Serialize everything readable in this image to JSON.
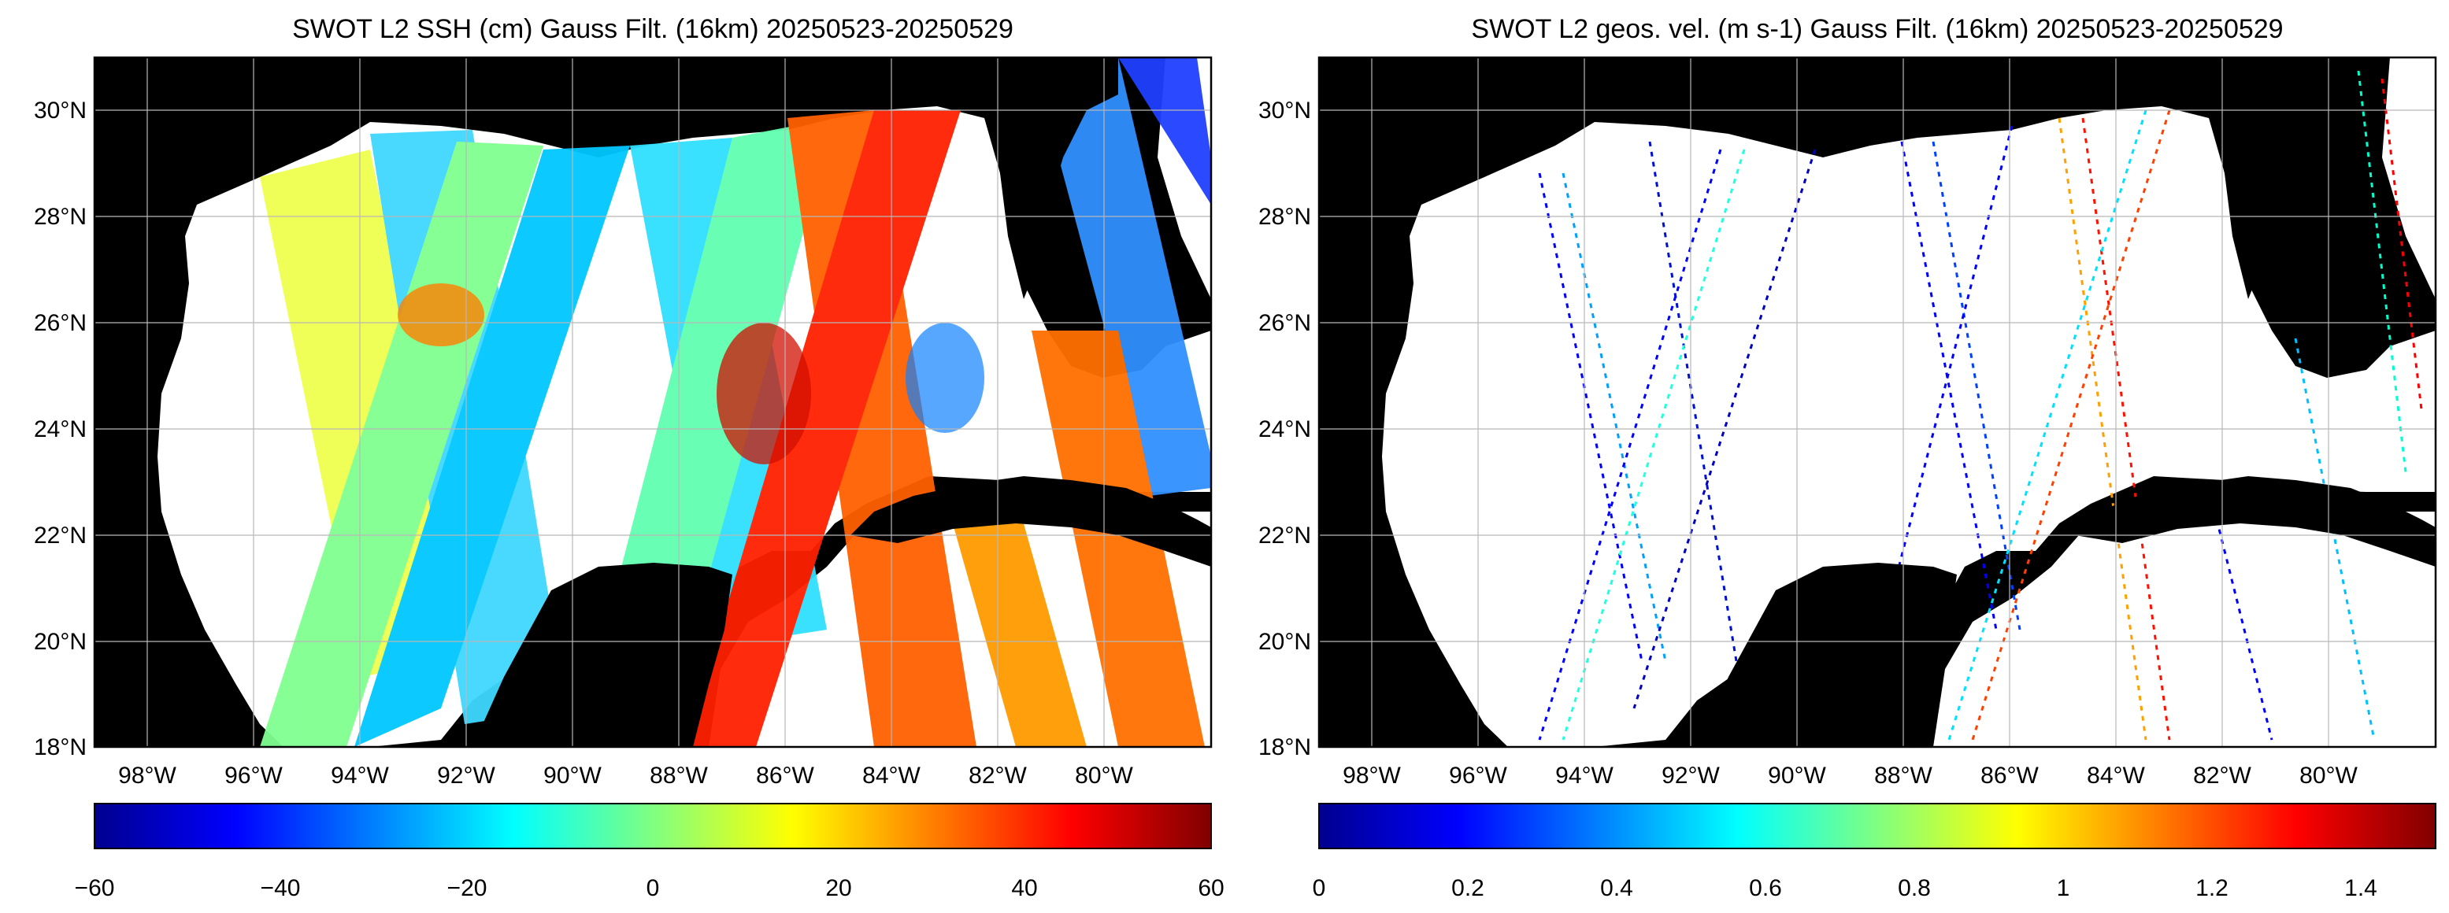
{
  "panels": [
    {
      "title": "SWOT L2 SSH (cm) Gauss Filt. (16km) 20250523-20250529",
      "lat_labels": [
        "30°N",
        "28°N",
        "26°N",
        "24°N",
        "22°N",
        "20°N",
        "18°N"
      ],
      "lon_labels": [
        "98°W",
        "96°W",
        "94°W",
        "92°W",
        "90°W",
        "88°W",
        "86°W",
        "84°W",
        "82°W",
        "80°W"
      ],
      "colorbar": {
        "ticks": [
          "−60",
          "−40",
          "−20",
          "0",
          "20",
          "40",
          "60"
        ],
        "range": [
          -60,
          60
        ],
        "colormap": "jet"
      }
    },
    {
      "title": "SWOT L2 geos. vel. (m s-1) Gauss Filt. (16km) 20250523-20250529",
      "lat_labels": [
        "30°N",
        "28°N",
        "26°N",
        "24°N",
        "22°N",
        "20°N",
        "18°N"
      ],
      "lon_labels": [
        "98°W",
        "96°W",
        "94°W",
        "92°W",
        "90°W",
        "88°W",
        "86°W",
        "84°W",
        "82°W",
        "80°W"
      ],
      "colorbar": {
        "ticks": [
          "0",
          "0.2",
          "0.4",
          "0.6",
          "0.8",
          "1",
          "1.2",
          "1.4"
        ],
        "range": [
          0,
          1.5
        ],
        "colormap": "jet"
      }
    }
  ],
  "map": {
    "lon_range": [
      -99,
      -78
    ],
    "lat_range": [
      18,
      31
    ]
  },
  "colors": {
    "land": "#000000",
    "no_data": "#ffffff",
    "grid": "#b8b8b8"
  }
}
